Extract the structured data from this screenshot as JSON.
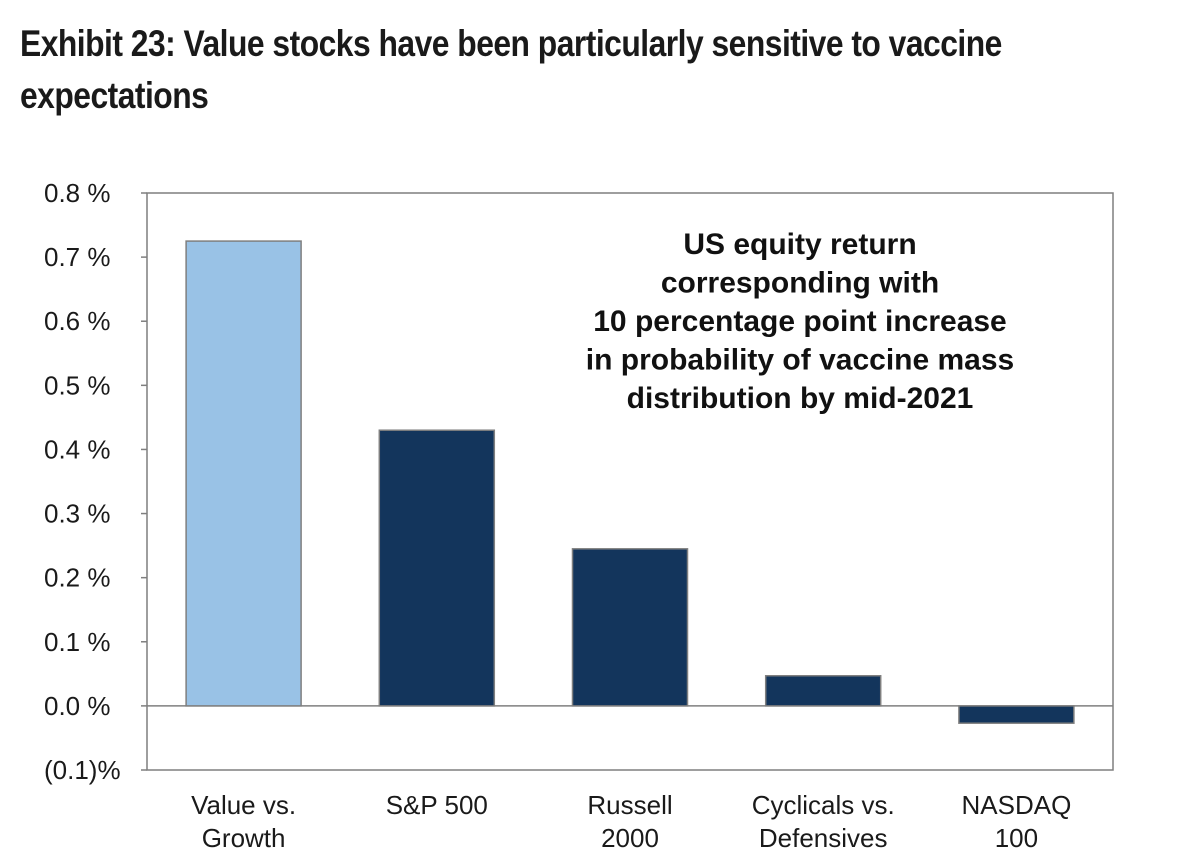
{
  "title_lines": [
    "Exhibit 23: Value stocks have been particularly sensitive to vaccine",
    "expectations"
  ],
  "chart_data": {
    "type": "bar",
    "categories": [
      [
        "Value vs.",
        "Growth"
      ],
      [
        "S&P 500"
      ],
      [
        "Russell",
        "2000"
      ],
      [
        "Cyclicals vs.",
        "Defensives"
      ],
      [
        "NASDAQ",
        "100"
      ]
    ],
    "values": [
      0.725,
      0.43,
      0.245,
      0.047,
      -0.027
    ],
    "bar_colors": [
      "#99c2e6",
      "#13355c",
      "#13355c",
      "#13355c",
      "#13355c"
    ],
    "ylim": [
      -0.1,
      0.8
    ],
    "y_ticks": [
      0.8,
      0.7,
      0.6,
      0.5,
      0.4,
      0.3,
      0.2,
      0.1,
      0.0,
      -0.1
    ],
    "y_tick_labels": [
      "0.8 %",
      "0.7 %",
      "0.6 %",
      "0.5 %",
      "0.4 %",
      "0.3 %",
      "0.2 %",
      "0.1 %",
      "0.0 %",
      "(0.1)%"
    ],
    "annotation_lines": [
      "US equity return",
      "corresponding with",
      "10 percentage point increase",
      "in probability of vaccine mass",
      "distribution by mid-2021"
    ],
    "grid": false,
    "legend": "none",
    "bar_border_color": "#7f7f7f",
    "axis_color": "#7f7f7f"
  }
}
